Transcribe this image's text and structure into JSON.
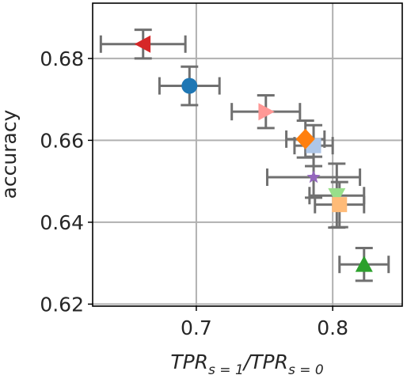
{
  "chart_data": {
    "type": "scatter",
    "title": "",
    "xlabel": {
      "base1": "TPR",
      "sub1": "s = 1",
      "sep": "/",
      "base2": "TPR",
      "sub2": "s = 0"
    },
    "ylabel": "accuracy",
    "xlim": [
      0.624,
      0.851
    ],
    "ylim": [
      0.6195,
      0.6935
    ],
    "grid": true,
    "xticks": [
      0.7,
      0.8
    ],
    "xtick_labels": [
      "0.7",
      "0.8"
    ],
    "yticks": [
      0.62,
      0.64,
      0.66,
      0.68
    ],
    "ytick_labels": [
      "0.62",
      "0.64",
      "0.66",
      "0.68"
    ],
    "errorbar_color": "#707070",
    "points": [
      {
        "x": 0.661,
        "y": 0.6835,
        "xerr": 0.031,
        "yerr": 0.0035,
        "marker": "triangle-left",
        "color": "#d62728"
      },
      {
        "x": 0.695,
        "y": 0.6733,
        "xerr": 0.022,
        "yerr": 0.0047,
        "marker": "circle",
        "color": "#1f77b4"
      },
      {
        "x": 0.751,
        "y": 0.667,
        "xerr": 0.025,
        "yerr": 0.004,
        "marker": "triangle-right",
        "color": "#ff9896"
      },
      {
        "x": 0.786,
        "y": 0.6587,
        "xerr": 0.014,
        "yerr": 0.005,
        "marker": "square",
        "color": "#aec7e8"
      },
      {
        "x": 0.78,
        "y": 0.6603,
        "xerr": 0.014,
        "yerr": 0.0045,
        "marker": "diamond",
        "color": "#ff7f0e"
      },
      {
        "x": 0.786,
        "y": 0.651,
        "xerr": 0.034,
        "yerr": 0.005,
        "marker": "star",
        "color": "#9467bd"
      },
      {
        "x": 0.803,
        "y": 0.6465,
        "xerr": 0.02,
        "yerr": 0.0078,
        "marker": "triangle-down",
        "color": "#98df8a"
      },
      {
        "x": 0.805,
        "y": 0.6443,
        "xerr": 0.018,
        "yerr": 0.0055,
        "marker": "square",
        "color": "#ffbb78"
      },
      {
        "x": 0.823,
        "y": 0.6297,
        "xerr": 0.018,
        "yerr": 0.004,
        "marker": "triangle-up",
        "color": "#2ca02c"
      }
    ]
  }
}
